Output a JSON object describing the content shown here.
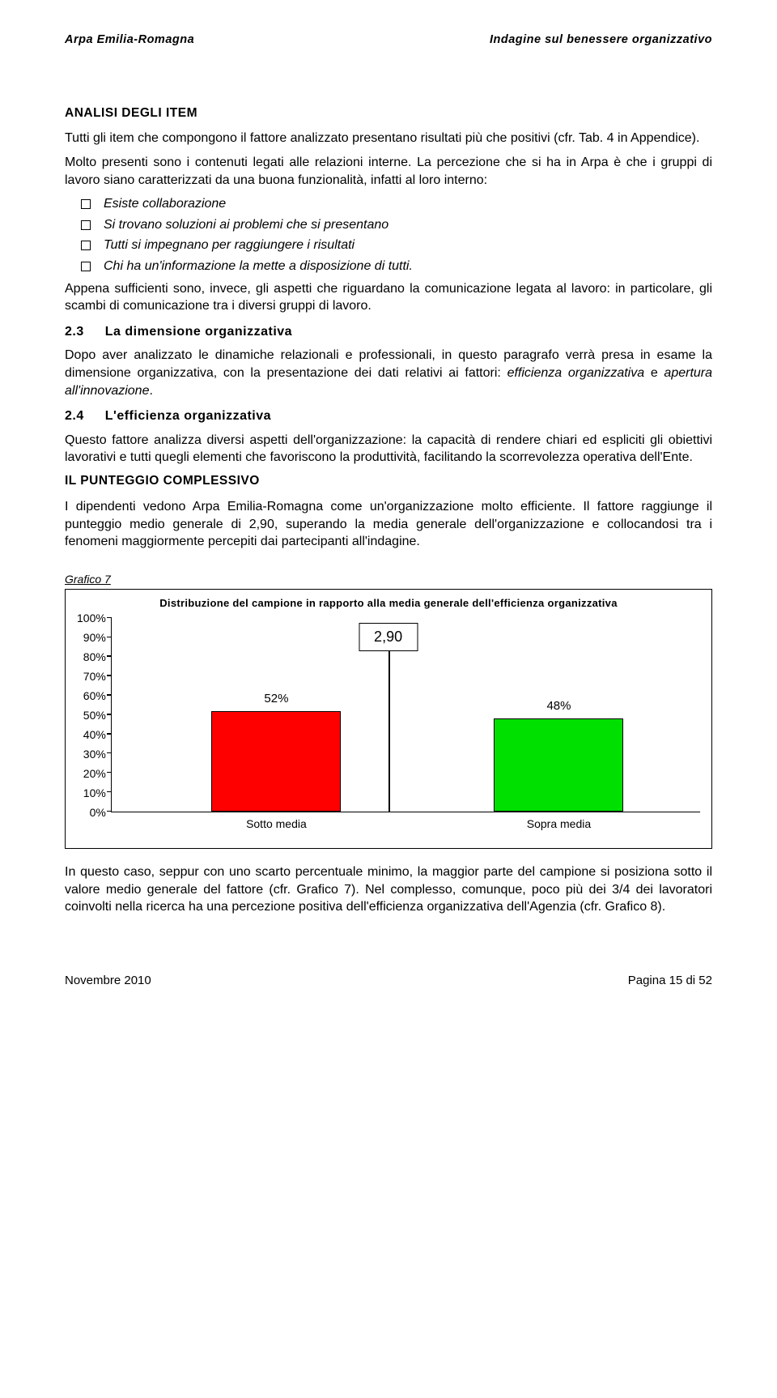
{
  "header": {
    "left": "Arpa Emilia-Romagna",
    "right": "Indagine sul benessere organizzativo"
  },
  "sec1": {
    "heading": "ANALISI DEGLI ITEM",
    "p1": "Tutti gli item che compongono il fattore analizzato presentano risultati più che positivi (cfr. Tab. 4 in Appendice).",
    "p2": "Molto presenti sono i contenuti legati alle relazioni interne. La percezione che si ha in Arpa è che i gruppi di lavoro siano caratterizzati da una buona funzionalità, infatti al loro interno:",
    "bullets": [
      "Esiste collaborazione",
      "Si trovano soluzioni ai problemi che si presentano",
      "Tutti si impegnano per raggiungere i risultati",
      "Chi ha un'informazione la mette a disposizione di tutti."
    ],
    "p3": "Appena sufficienti sono, invece, gli aspetti che riguardano la comunicazione legata al lavoro: in particolare, gli scambi di comunicazione tra i diversi gruppi di lavoro."
  },
  "sec2": {
    "num": "2.3",
    "title": "La dimensione organizzativa",
    "p1a": "Dopo aver analizzato le dinamiche relazionali e professionali, in questo paragrafo verrà presa in esame la dimensione organizzativa, con la presentazione dei dati relativi ai fattori: ",
    "p1b": "efficienza organizzativa",
    "p1c": " e ",
    "p1d": "apertura all'innovazione",
    "p1e": "."
  },
  "sec3": {
    "num": "2.4",
    "title": "L'efficienza organizzativa",
    "p1": "Questo fattore analizza diversi aspetti dell'organizzazione: la capacità di rendere chiari ed espliciti gli obiettivi lavorativi e tutti quegli elementi che favoriscono la produttività, facilitando la scorrevolezza operativa dell'Ente."
  },
  "sec4": {
    "heading": "IL PUNTEGGIO COMPLESSIVO",
    "p1": "I dipendenti vedono Arpa Emilia-Romagna come un'organizzazione molto efficiente. Il fattore raggiunge il punteggio medio generale di 2,90, superando la media generale dell'organizzazione e collocandosi tra i fenomeni maggiormente percepiti dai partecipanti all'indagine."
  },
  "chart": {
    "label": "Grafico 7",
    "title": "Distribuzione del campione in rapporto alla media generale dell'efficienza organizzativa",
    "type": "bar",
    "ylim": [
      0,
      100
    ],
    "ytick_step": 10,
    "yticks": [
      "100%",
      "90%",
      "80%",
      "70%",
      "60%",
      "50%",
      "40%",
      "30%",
      "20%",
      "10%",
      "0%"
    ],
    "categories": [
      "Sotto media",
      "Sopra media"
    ],
    "values": [
      52,
      48
    ],
    "value_labels": [
      "52%",
      "48%"
    ],
    "bar_colors": [
      "#ff0000",
      "#00e000"
    ],
    "bar_border": "#000000",
    "bar_width_pct": 22,
    "bar_positions_pct": [
      28,
      76
    ],
    "mean_value": "2,90",
    "mean_line_pos_pct": 47,
    "mean_line_height_pct": 83,
    "background": "#ffffff"
  },
  "after_chart": {
    "p1": "In questo caso, seppur con uno scarto percentuale minimo, la maggior parte del campione si posiziona sotto il valore medio generale del fattore (cfr. Grafico 7). Nel complesso, comunque, poco più dei 3/4 dei lavoratori coinvolti nella ricerca ha una percezione positiva dell'efficienza organizzativa dell'Agenzia (cfr. Grafico 8)."
  },
  "footer": {
    "left": "Novembre 2010",
    "right": "Pagina 15 di 52"
  }
}
